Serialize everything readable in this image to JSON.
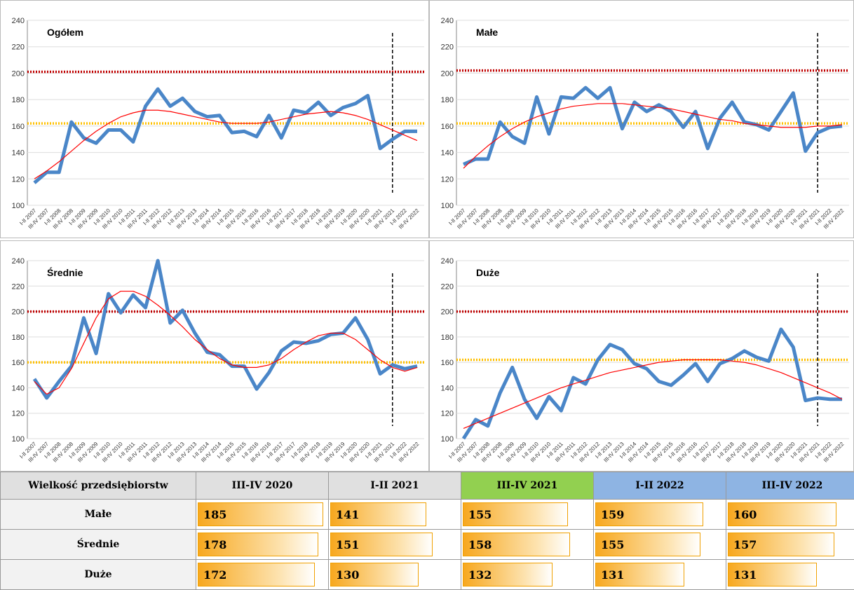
{
  "chart_data": [
    {
      "type": "line",
      "title": "Ogółem",
      "ylim": [
        100,
        240
      ],
      "yticks": [
        100,
        120,
        140,
        160,
        180,
        200,
        220,
        240
      ],
      "categories": [
        "I-II 2007",
        "III-IV 2007",
        "I-II 2008",
        "III-IV 2008",
        "I-II 2009",
        "III-IV 2009",
        "I-II 2010",
        "III-IV 2010",
        "I-II 2011",
        "III-IV 2011",
        "I-II 2012",
        "III-IV 2012",
        "I-II 2013",
        "III-IV 2013",
        "I-II 2014",
        "III-IV 2014",
        "I-II 2015",
        "III-IV 2015",
        "I-II 2016",
        "III-IV 2016",
        "I-II 2017",
        "III-IV 2017",
        "I-II 2018",
        "III-IV 2018",
        "I-II 2019",
        "III-IV 2019",
        "I-II 2020",
        "III-IV 2020",
        "I-II 2021",
        "III-IV 2021",
        "I-II 2022",
        "III-IV 2022"
      ],
      "series": [
        {
          "color": "#4a86c8",
          "values": [
            117,
            125,
            125,
            163,
            151,
            147,
            157,
            157,
            148,
            175,
            188,
            175,
            181,
            171,
            167,
            168,
            155,
            156,
            152,
            168,
            151,
            172,
            170,
            178,
            168,
            174,
            177,
            183,
            143,
            150,
            156,
            156
          ]
        },
        {
          "color": "#ff0000",
          "values": [
            120,
            126,
            133,
            141,
            149,
            156,
            162,
            167,
            170,
            172,
            172,
            171,
            169,
            167,
            165,
            163,
            162,
            162,
            162,
            163,
            165,
            167,
            169,
            170,
            171,
            170,
            168,
            165,
            161,
            157,
            153,
            149
          ]
        }
      ],
      "reference_lines": [
        {
          "value": 201,
          "color": "#c00000"
        },
        {
          "value": 162,
          "color": "#ffc000"
        }
      ],
      "vline": "III-IV 2021"
    },
    {
      "type": "line",
      "title": "Małe",
      "ylim": [
        100,
        240
      ],
      "yticks": [
        100,
        120,
        140,
        160,
        180,
        200,
        220,
        240
      ],
      "categories": [
        "I-II 2007",
        "III-IV 2007",
        "I-II 2008",
        "III-IV 2008",
        "I-II 2009",
        "III-IV 2009",
        "I-II 2010",
        "III-IV 2010",
        "I-II 2011",
        "III-IV 2011",
        "I-II 2012",
        "III-IV 2012",
        "I-II 2013",
        "III-IV 2013",
        "I-II 2014",
        "III-IV 2014",
        "I-II 2015",
        "III-IV 2015",
        "I-II 2016",
        "III-IV 2016",
        "I-II 2017",
        "III-IV 2017",
        "I-II 2018",
        "III-IV 2018",
        "I-II 2019",
        "III-IV 2019",
        "I-II 2020",
        "III-IV 2020",
        "I-II 2021",
        "III-IV 2021",
        "I-II 2022",
        "III-IV 2022"
      ],
      "series": [
        {
          "color": "#4a86c8",
          "values": [
            131,
            135,
            135,
            163,
            152,
            147,
            182,
            154,
            182,
            181,
            189,
            181,
            189,
            158,
            178,
            171,
            176,
            171,
            159,
            171,
            143,
            166,
            178,
            163,
            161,
            157,
            171,
            185,
            141,
            155,
            159,
            160
          ]
        },
        {
          "color": "#ff0000",
          "values": [
            128,
            137,
            145,
            152,
            158,
            163,
            167,
            170,
            173,
            175,
            176,
            177,
            177,
            177,
            176,
            175,
            174,
            173,
            171,
            169,
            167,
            165,
            164,
            162,
            161,
            160,
            159,
            159,
            159,
            160,
            160,
            161
          ]
        }
      ],
      "reference_lines": [
        {
          "value": 202,
          "color": "#c00000"
        },
        {
          "value": 162,
          "color": "#ffc000"
        }
      ],
      "vline": "III-IV 2021"
    },
    {
      "type": "line",
      "title": "Średnie",
      "ylim": [
        100,
        240
      ],
      "yticks": [
        100,
        120,
        140,
        160,
        180,
        200,
        220,
        240
      ],
      "categories": [
        "I-II 2007",
        "III-IV 2007",
        "I-II 2008",
        "III-IV 2008",
        "I-II 2009",
        "III-IV 2009",
        "I-II 2010",
        "III-IV 2010",
        "I-II 2011",
        "III-IV 2011",
        "I-II 2012",
        "III-IV 2012",
        "I-II 2013",
        "III-IV 2013",
        "I-II 2014",
        "III-IV 2014",
        "I-II 2015",
        "III-IV 2015",
        "I-II 2016",
        "III-IV 2016",
        "I-II 2017",
        "III-IV 2017",
        "I-II 2018",
        "III-IV 2018",
        "I-II 2019",
        "III-IV 2019",
        "I-II 2020",
        "III-IV 2020",
        "I-II 2021",
        "III-IV 2021",
        "I-II 2022",
        "III-IV 2022"
      ],
      "series": [
        {
          "color": "#4a86c8",
          "values": [
            147,
            132,
            145,
            157,
            195,
            167,
            214,
            199,
            213,
            203,
            240,
            191,
            201,
            183,
            168,
            166,
            157,
            157,
            139,
            152,
            169,
            176,
            175,
            177,
            182,
            183,
            195,
            178,
            151,
            158,
            155,
            157
          ]
        },
        {
          "color": "#ff0000",
          "values": [
            145,
            135,
            140,
            155,
            175,
            195,
            210,
            216,
            216,
            212,
            205,
            197,
            188,
            178,
            170,
            163,
            158,
            156,
            156,
            158,
            163,
            170,
            176,
            181,
            183,
            183,
            178,
            170,
            162,
            156,
            153,
            156
          ]
        }
      ],
      "reference_lines": [
        {
          "value": 200,
          "color": "#c00000"
        },
        {
          "value": 160,
          "color": "#ffc000"
        }
      ],
      "vline": "III-IV 2021"
    },
    {
      "type": "line",
      "title": "Duże",
      "ylim": [
        100,
        240
      ],
      "yticks": [
        100,
        120,
        140,
        160,
        180,
        200,
        220,
        240
      ],
      "categories": [
        "I-II 2007",
        "III-IV 2007",
        "I-II 2008",
        "III-IV 2008",
        "I-II 2009",
        "III-IV 2009",
        "I-II 2010",
        "III-IV 2010",
        "I-II 2011",
        "III-IV 2011",
        "I-II 2012",
        "III-IV 2012",
        "I-II 2013",
        "III-IV 2013",
        "I-II 2014",
        "III-IV 2014",
        "I-II 2015",
        "III-IV 2015",
        "I-II 2016",
        "III-IV 2016",
        "I-II 2017",
        "III-IV 2017",
        "I-II 2018",
        "III-IV 2018",
        "I-II 2019",
        "III-IV 2019",
        "I-II 2020",
        "III-IV 2020",
        "I-II 2021",
        "III-IV 2021",
        "I-II 2022",
        "III-IV 2022"
      ],
      "series": [
        {
          "color": "#4a86c8",
          "values": [
            100,
            115,
            110,
            136,
            156,
            131,
            116,
            133,
            122,
            148,
            143,
            162,
            174,
            170,
            159,
            155,
            145,
            142,
            150,
            159,
            145,
            159,
            163,
            169,
            164,
            161,
            186,
            172,
            130,
            132,
            131,
            131
          ]
        },
        {
          "color": "#ff0000",
          "values": [
            108,
            112,
            116,
            120,
            124,
            128,
            132,
            136,
            140,
            143,
            146,
            149,
            152,
            154,
            156,
            158,
            160,
            161,
            162,
            162,
            162,
            162,
            161,
            160,
            158,
            155,
            152,
            148,
            144,
            140,
            136,
            131
          ]
        }
      ],
      "reference_lines": [
        {
          "value": 200,
          "color": "#c00000"
        },
        {
          "value": 162,
          "color": "#ffc000"
        }
      ],
      "vline": "III-IV 2021"
    }
  ],
  "table": {
    "header": [
      "Wielkość przedsiębiorstw",
      "III-IV 2020",
      "I-II 2021",
      "III-IV 2021",
      "I-II 2022",
      "III-IV 2022"
    ],
    "header_colors": [
      "#e0e0e0",
      "#e0e0e0",
      "#e0e0e0",
      "#92d050",
      "#8eb4e3",
      "#8eb4e3"
    ],
    "rows": [
      [
        "Małe",
        185,
        141,
        155,
        159,
        160
      ],
      [
        "Średnie",
        178,
        151,
        158,
        155,
        157
      ],
      [
        "Duże",
        172,
        130,
        132,
        131,
        131
      ]
    ]
  }
}
